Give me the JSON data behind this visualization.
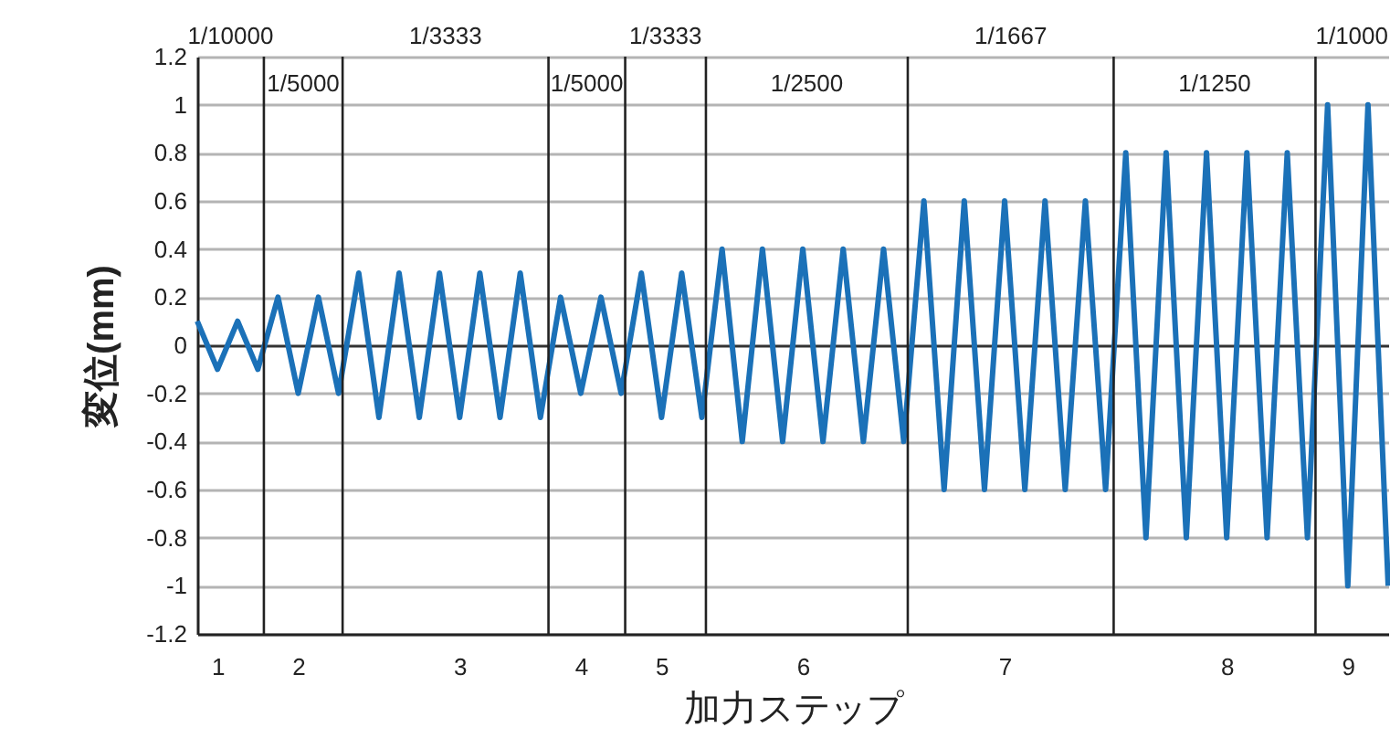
{
  "chart_data": {
    "type": "line",
    "xlabel": "加力ステップ",
    "ylabel": "変位(mm)",
    "categories": [
      null,
      "1",
      null,
      null,
      null,
      "2",
      null,
      null,
      null,
      null,
      null,
      null,
      null,
      "3",
      null,
      null,
      null,
      null,
      null,
      "4",
      null,
      null,
      null,
      "5",
      null,
      null,
      null,
      null,
      null,
      null,
      "6",
      null,
      null,
      null,
      null,
      null,
      null,
      null,
      null,
      null,
      "7",
      null,
      null,
      null,
      null,
      null,
      null,
      null,
      null,
      null,
      null,
      "8",
      null,
      null,
      null,
      null,
      null,
      "9",
      null,
      null
    ],
    "series": [
      {
        "color": "#1b71b8",
        "values": [
          0.1,
          -0.1,
          0.1,
          -0.1,
          0.2,
          -0.2,
          0.2,
          -0.2,
          0.3,
          -0.3,
          0.3,
          -0.3,
          0.3,
          -0.3,
          0.3,
          -0.3,
          0.3,
          -0.3,
          0.2,
          -0.2,
          0.2,
          -0.2,
          0.3,
          -0.3,
          0.3,
          -0.3,
          0.4,
          -0.4,
          0.4,
          -0.4,
          0.4,
          -0.4,
          0.4,
          -0.4,
          0.4,
          -0.4,
          0.6,
          -0.6,
          0.6,
          -0.6,
          0.6,
          -0.6,
          0.6,
          -0.6,
          0.6,
          -0.6,
          0.8,
          -0.8,
          0.8,
          -0.8,
          0.8,
          -0.8,
          0.8,
          -0.8,
          0.8,
          -0.8,
          1,
          -1,
          1,
          -1
        ]
      }
    ],
    "ylim": [
      -1.2,
      1.2
    ],
    "yticks": [
      -1.2,
      -1,
      -0.8,
      -0.6,
      -0.4,
      -0.2,
      0,
      0.2,
      0.4,
      0.6,
      0.8,
      1,
      1.2
    ],
    "annotations": [
      "1/10000",
      "1/5000",
      "1/3333",
      "1/5000",
      "1/3333",
      "1/2500",
      "1/1667",
      "1/1250",
      "1/1000"
    ],
    "grid": "y",
    "line_style": "solid"
  }
}
